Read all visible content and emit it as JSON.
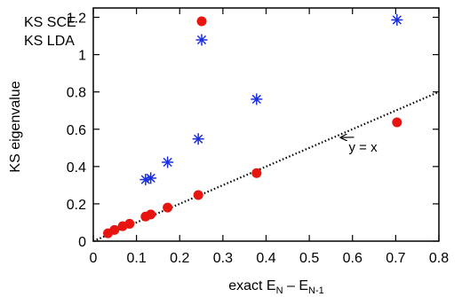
{
  "chart_data": {
    "type": "scatter",
    "title": "",
    "xlabel": {
      "main": "exact E",
      "sub1": "N",
      "dash": " – E",
      "sub2": "N-1"
    },
    "ylabel": "KS eigenvalue",
    "xlim": [
      0,
      0.8
    ],
    "ylim": [
      0,
      1.25
    ],
    "xticks": [
      "0",
      "0.1",
      "0.2",
      "0.3",
      "0.4",
      "0.5",
      "0.6",
      "0.7",
      "0.8"
    ],
    "yticks": [
      "0",
      "0.2",
      "0.4",
      "0.6",
      "0.8",
      "1",
      "1.2"
    ],
    "grid": false,
    "legend_position": "top-left",
    "series": [
      {
        "name": "KS SCE",
        "marker": "filled-circle",
        "color": "#e8140f",
        "points": [
          [
            0.034,
            0.042
          ],
          [
            0.049,
            0.06
          ],
          [
            0.068,
            0.08
          ],
          [
            0.084,
            0.093
          ],
          [
            0.121,
            0.132
          ],
          [
            0.133,
            0.143
          ],
          [
            0.172,
            0.18
          ],
          [
            0.243,
            0.247
          ],
          [
            0.378,
            0.365
          ],
          [
            0.703,
            0.637
          ]
        ]
      },
      {
        "name": "KS LDA",
        "marker": "asterisk",
        "color": "#1a2fe0",
        "points": [
          [
            0.121,
            0.33
          ],
          [
            0.133,
            0.338
          ],
          [
            0.172,
            0.423
          ],
          [
            0.243,
            0.548
          ],
          [
            0.378,
            0.761
          ],
          [
            0.703,
            1.186
          ]
        ]
      }
    ],
    "reference_line": {
      "slope": 1,
      "intercept": 0,
      "style": "dotted",
      "color": "#000000"
    },
    "annotations": [
      {
        "text": "y = x",
        "arrow_to": [
          0.565,
          0.565
        ],
        "text_at": [
          0.62,
          0.5
        ]
      }
    ]
  }
}
